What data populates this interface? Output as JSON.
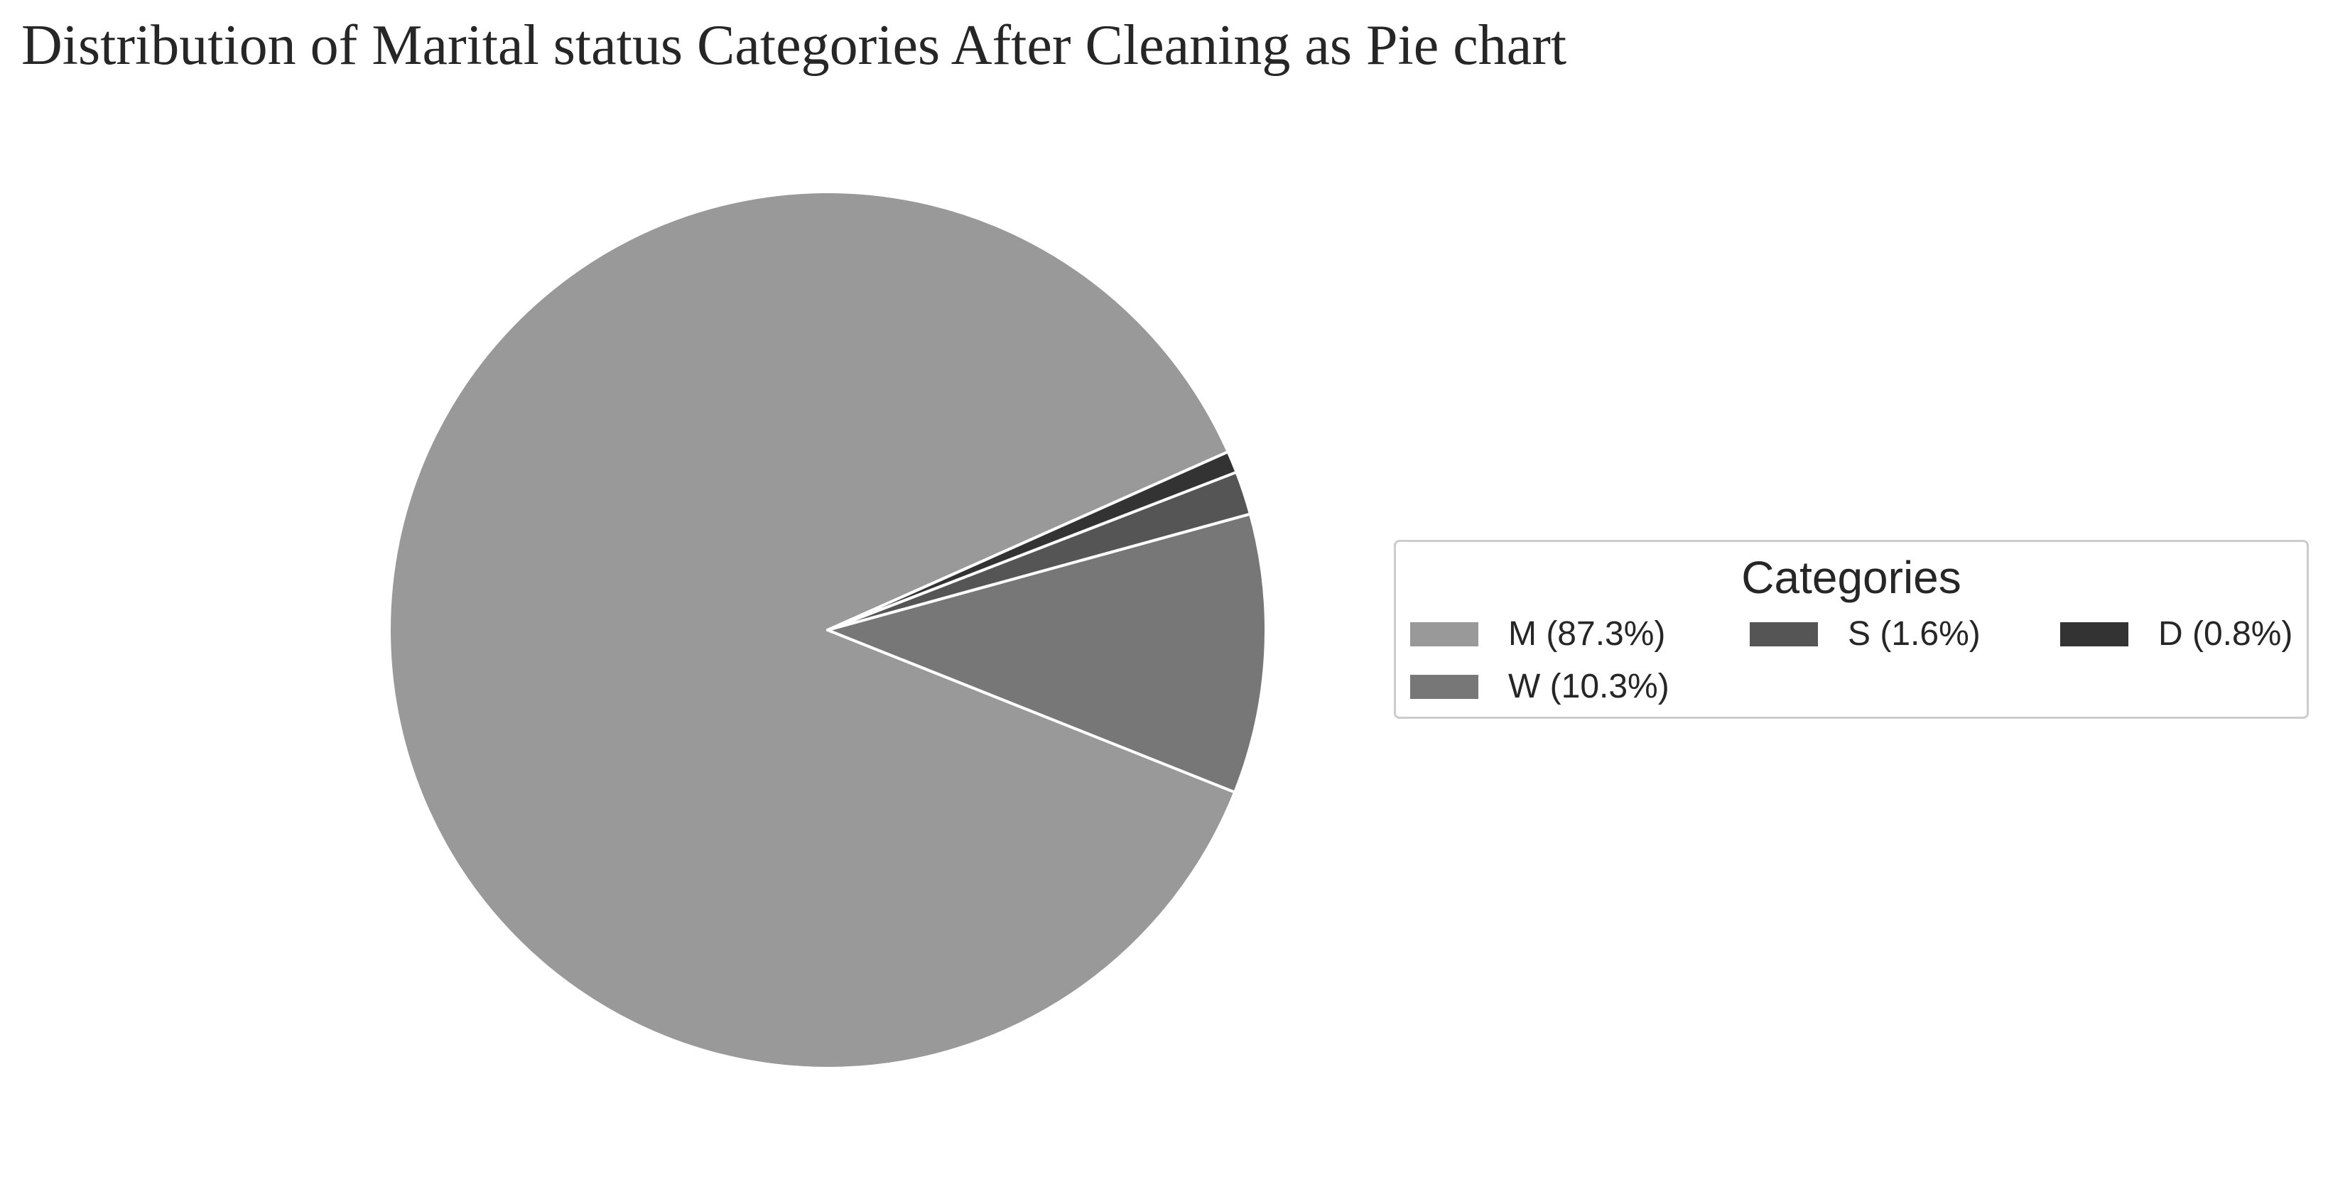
{
  "chart_data": {
    "type": "pie",
    "title": "Distribution of Marital status Categories After Cleaning as Pie chart",
    "start_angle_deg": 24,
    "direction": "counterclockwise",
    "slices": [
      {
        "category": "M",
        "percent": 87.3,
        "label": "M (87.3%)",
        "color": "#999999"
      },
      {
        "category": "W",
        "percent": 10.3,
        "label": "W (10.3%)",
        "color": "#777777"
      },
      {
        "category": "S",
        "percent": 1.6,
        "label": "S (1.6%)",
        "color": "#555555"
      },
      {
        "category": "D",
        "percent": 0.8,
        "label": "D (0.8%)",
        "color": "#333333"
      }
    ],
    "legend": {
      "title": "Categories",
      "placement": "right",
      "columns": 3
    },
    "edge_color": "#ffffff"
  }
}
